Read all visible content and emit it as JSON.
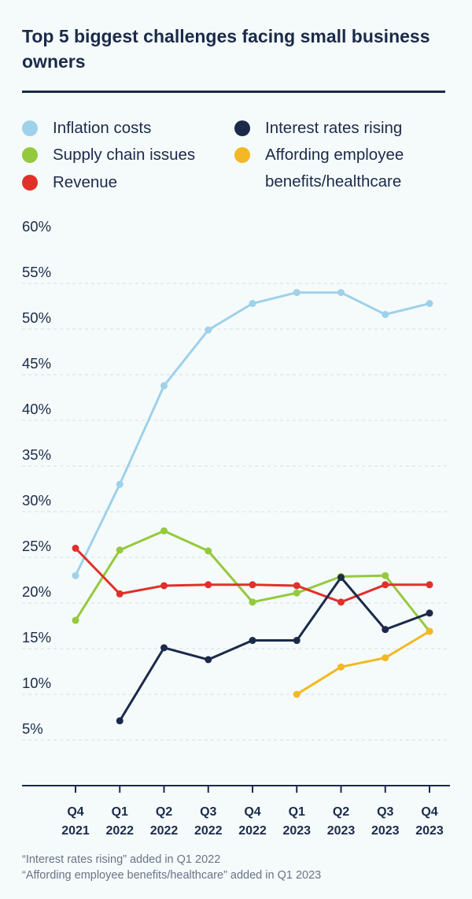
{
  "title": "Top 5 biggest challenges facing small business owners",
  "legend": [
    {
      "label": "Inflation costs",
      "color": "#9fd1ea"
    },
    {
      "label": "Interest rates rising",
      "color": "#1b2a4a"
    },
    {
      "label": "Supply chain issues",
      "color": "#95c93d"
    },
    {
      "label": "Affording employee benefits/healthcare",
      "color": "#f3b823"
    },
    {
      "label": "Revenue",
      "color": "#e0302a"
    }
  ],
  "footnotes": [
    "“Interest rates rising” added in Q1 2022",
    "“Affording employee benefits/healthcare” added in Q1 2023"
  ],
  "chart_data": {
    "type": "line",
    "x": [
      [
        "Q4",
        "2021"
      ],
      [
        "Q1",
        "2022"
      ],
      [
        "Q2",
        "2022"
      ],
      [
        "Q3",
        "2022"
      ],
      [
        "Q4",
        "2022"
      ],
      [
        "Q1",
        "2023"
      ],
      [
        "Q2",
        "2023"
      ],
      [
        "Q3",
        "2023"
      ],
      [
        "Q4",
        "2023"
      ]
    ],
    "yticks": [
      "60%",
      "55%",
      "50%",
      "45%",
      "40%",
      "35%",
      "30%",
      "25%",
      "20%",
      "15%",
      "10%",
      "5%"
    ],
    "ylim": [
      0,
      60
    ],
    "grid": true,
    "legend_position": "top",
    "series": [
      {
        "name": "Inflation costs",
        "color": "#9fd1ea",
        "values": [
          23,
          33,
          43.8,
          49.9,
          52.8,
          54,
          54,
          51.6,
          52.8
        ]
      },
      {
        "name": "Supply chain issues",
        "color": "#95c93d",
        "values": [
          18.1,
          25.8,
          27.9,
          25.7,
          20.1,
          21.1,
          22.9,
          23,
          16.9
        ]
      },
      {
        "name": "Revenue",
        "color": "#e0302a",
        "values": [
          26,
          21,
          21.9,
          22,
          22,
          21.9,
          20.1,
          22,
          22
        ]
      },
      {
        "name": "Interest rates rising",
        "color": "#1b2a4a",
        "values": [
          null,
          7.1,
          15.1,
          13.8,
          15.9,
          15.9,
          22.8,
          17.1,
          18.9
        ]
      },
      {
        "name": "Affording employee benefits/healthcare",
        "color": "#f3b823",
        "values": [
          null,
          null,
          null,
          null,
          null,
          10,
          13,
          14,
          16.9
        ]
      }
    ]
  }
}
